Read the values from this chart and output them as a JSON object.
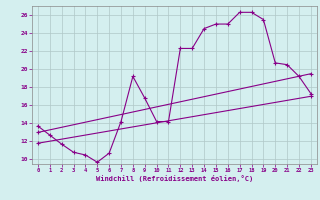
{
  "xlabel": "Windchill (Refroidissement éolien,°C)",
  "bg_color": "#d4efef",
  "line_color": "#880088",
  "grid_color": "#b0c8c8",
  "xlim": [
    -0.5,
    23.5
  ],
  "ylim": [
    9.5,
    27.0
  ],
  "yticks": [
    10,
    12,
    14,
    16,
    18,
    20,
    22,
    24,
    26
  ],
  "xticks": [
    0,
    1,
    2,
    3,
    4,
    5,
    6,
    7,
    8,
    9,
    10,
    11,
    12,
    13,
    14,
    15,
    16,
    17,
    18,
    19,
    20,
    21,
    22,
    23
  ],
  "line1_x": [
    0,
    1,
    2,
    3,
    4,
    5,
    6,
    7,
    8,
    9,
    10,
    11,
    12,
    13,
    14,
    15,
    16,
    17,
    18,
    19,
    20,
    21,
    22,
    23
  ],
  "line1_y": [
    13.7,
    12.7,
    11.7,
    10.8,
    10.5,
    9.7,
    10.7,
    14.2,
    19.2,
    16.8,
    14.2,
    14.2,
    22.3,
    22.3,
    24.5,
    25.0,
    25.0,
    26.3,
    26.3,
    25.5,
    20.7,
    20.5,
    19.2,
    17.3
  ],
  "line2_x": [
    0,
    23
  ],
  "line2_y": [
    11.8,
    17.0
  ],
  "line3_x": [
    0,
    23
  ],
  "line3_y": [
    13.0,
    19.5
  ]
}
